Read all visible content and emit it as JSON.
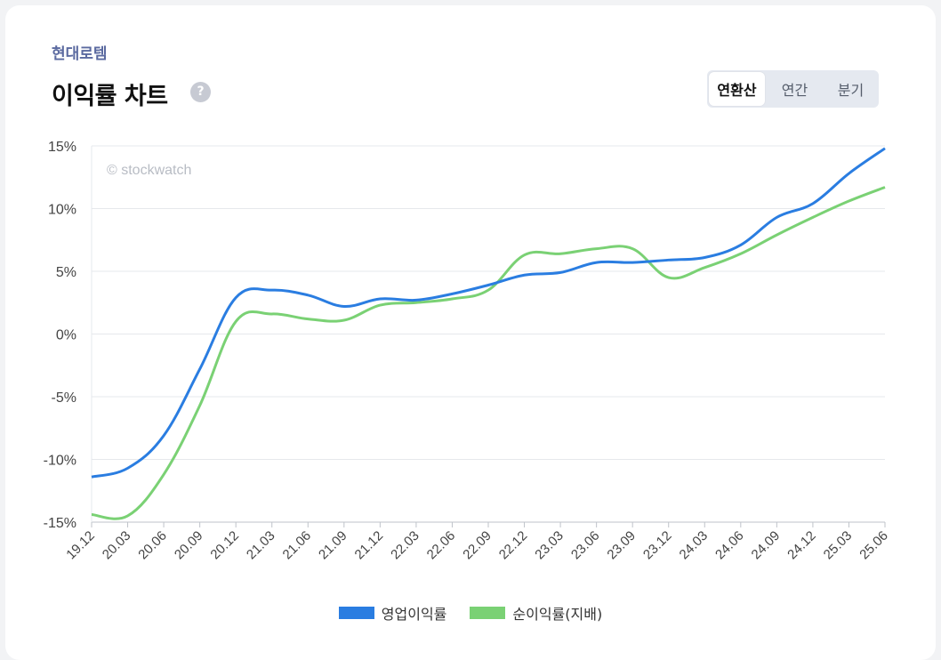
{
  "header": {
    "company": "현대로템",
    "title": "이익률 차트",
    "help_icon": "?"
  },
  "tabs": [
    {
      "label": "연환산",
      "active": true
    },
    {
      "label": "연간",
      "active": false
    },
    {
      "label": "분기",
      "active": false
    }
  ],
  "watermark": "© stockwatch",
  "chart_data": {
    "type": "line",
    "categories": [
      "19.12",
      "20.03",
      "20.06",
      "20.09",
      "20.12",
      "21.03",
      "21.06",
      "21.09",
      "21.12",
      "22.03",
      "22.06",
      "22.09",
      "22.12",
      "23.03",
      "23.06",
      "23.09",
      "23.12",
      "24.03",
      "24.06",
      "24.09",
      "24.12",
      "25.03",
      "25.06"
    ],
    "ylim": [
      -15,
      15
    ],
    "yticks": [
      15,
      10,
      5,
      0,
      -5,
      -10,
      -15
    ],
    "ytick_labels": [
      "15%",
      "10%",
      "5%",
      "0%",
      "-5%",
      "-10%",
      "-15%"
    ],
    "series": [
      {
        "name": "영업이익률",
        "color": "#2a7de1",
        "values": [
          -11.4,
          -10.7,
          -8.1,
          -2.8,
          2.9,
          3.5,
          3.1,
          2.2,
          2.8,
          2.7,
          3.2,
          3.9,
          4.7,
          4.9,
          5.7,
          5.7,
          5.9,
          6.1,
          7.1,
          9.3,
          10.4,
          12.8,
          14.8
        ]
      },
      {
        "name": "순이익률(지배)",
        "color": "#7ad174",
        "values": [
          -14.4,
          -14.5,
          -11.2,
          -5.7,
          1.0,
          1.6,
          1.2,
          1.1,
          2.3,
          2.5,
          2.8,
          3.5,
          6.3,
          6.4,
          6.8,
          6.8,
          4.5,
          5.3,
          6.4,
          7.9,
          9.3,
          10.6,
          11.7
        ]
      }
    ]
  }
}
